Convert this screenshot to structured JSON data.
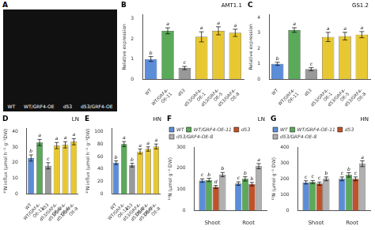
{
  "chart_data": [
    {
      "type": "image",
      "subtitle": "A",
      "color": "#111111",
      "annotations": [
        "WT",
        "WT/GRF4-OE",
        "d53",
        "d53/GRF4-OE"
      ]
    },
    {
      "type": "bar",
      "subtitle": "B",
      "title": "AMT1.1",
      "categories": [
        "WT",
        "WT/GRF4-\nOE-11",
        "d53",
        "d53/GRF4-\nOE-1",
        "d53/GRF4-\nOE-5",
        "d53/GRF4-\nOE-8"
      ],
      "values": [
        1.0,
        2.4,
        0.55,
        2.1,
        2.4,
        2.3
      ],
      "errors": [
        0.12,
        0.15,
        0.08,
        0.25,
        0.2,
        0.18
      ],
      "annotations": [
        "b",
        "a",
        "c",
        "a",
        "a",
        "a"
      ],
      "colors": [
        "#5b8dd9",
        "#5aaa5a",
        "#999999",
        "#e8c832",
        "#e8c832",
        "#e8c832"
      ],
      "ylabel": "Relative expression",
      "ylim": [
        0,
        3.2
      ],
      "yticks": [
        0,
        1,
        2,
        3
      ],
      "grid": false
    },
    {
      "type": "bar",
      "subtitle": "C",
      "title": "GS1.2",
      "categories": [
        "WT",
        "WT/GRF4-\nOE-11",
        "d53",
        "d53/GRF4-\nOE-1",
        "d53/GRF4-\nOE-5",
        "d53/GRF4-\nOE-8"
      ],
      "values": [
        1.0,
        3.2,
        0.65,
        2.75,
        2.8,
        2.9
      ],
      "errors": [
        0.1,
        0.15,
        0.1,
        0.3,
        0.25,
        0.2
      ],
      "annotations": [
        "b",
        "a",
        "c",
        "a",
        "a",
        "a"
      ],
      "colors": [
        "#5b8dd9",
        "#5aaa5a",
        "#999999",
        "#e8c832",
        "#e8c832",
        "#e8c832"
      ],
      "ylabel": "Relative expression",
      "ylim": [
        0,
        4.2
      ],
      "yticks": [
        0,
        1,
        2,
        3,
        4
      ],
      "grid": false
    },
    {
      "type": "bar",
      "subtitle": "D",
      "title": "LN",
      "categories": [
        "WT",
        "WT/GRF4-\nOE-11",
        "d53",
        "d53/GRF4-\nOE-1",
        "d53/GRF4-\nOE-5",
        "d53/GRF4-\nOE-8"
      ],
      "values": [
        23.0,
        33.0,
        18.0,
        31.0,
        31.5,
        33.5
      ],
      "errors": [
        2.0,
        2.0,
        2.0,
        2.0,
        2.0,
        2.0
      ],
      "annotations": [
        "b",
        "a",
        "c",
        "a",
        "a",
        "a"
      ],
      "colors": [
        "#5b8dd9",
        "#5aaa5a",
        "#999999",
        "#e8c832",
        "#e8c832",
        "#e8c832"
      ],
      "ylabel": "¹⁵N influx (μmol h⁻¹ g⁻¹DW)",
      "ylim": [
        0,
        42
      ],
      "yticks": [
        0,
        10,
        20,
        30,
        40
      ],
      "grid": false
    },
    {
      "type": "bar",
      "subtitle": "E",
      "title": "HN",
      "categories": [
        "WT",
        "WT/GRF4-\nOE-11",
        "d53",
        "d53/GRF4-\nOE-1",
        "d53/GRF4-\nOE-5",
        "d53/GRF4-\nOE-8"
      ],
      "values": [
        50.0,
        80.0,
        46.0,
        68.0,
        72.0,
        76.0
      ],
      "errors": [
        3.0,
        4.0,
        3.0,
        4.0,
        3.5,
        4.0
      ],
      "annotations": [
        "b",
        "a",
        "b",
        "a",
        "a",
        "a"
      ],
      "colors": [
        "#5b8dd9",
        "#5aaa5a",
        "#999999",
        "#e8c832",
        "#e8c832",
        "#e8c832"
      ],
      "ylabel": "¹⁵N influx (μmol h⁻¹ g⁻¹DW)",
      "ylim": [
        0,
        105
      ],
      "yticks": [
        0,
        20,
        40,
        60,
        80,
        100
      ],
      "grid": false
    },
    {
      "type": "bar",
      "subtitle": "F",
      "title": "LN",
      "categories": [
        "Shoot",
        "Root"
      ],
      "series": [
        {
          "name": "WT",
          "color": "#5b8dd9",
          "values": [
            142,
            128
          ],
          "errors": [
            8,
            8
          ],
          "annotations": [
            "c",
            "c"
          ]
        },
        {
          "name": "WT/GRF4-OE-11",
          "color": "#5aaa5a",
          "values": [
            145,
            150
          ],
          "errors": [
            8,
            10
          ],
          "annotations": [
            "b",
            "b"
          ]
        },
        {
          "name": "d53",
          "color": "#c0522a",
          "values": [
            112,
            125
          ],
          "errors": [
            7,
            8
          ],
          "annotations": [
            "d",
            "b"
          ]
        },
        {
          "name": "d53/GRF4-OE-8",
          "color": "#b0b0b0",
          "values": [
            170,
            210
          ],
          "errors": [
            10,
            12
          ],
          "annotations": [
            "b",
            "a"
          ]
        }
      ],
      "ylabel": "¹⁵N (μmol g⁻¹ DW)",
      "ylim": [
        0,
        300
      ],
      "yticks": [
        0,
        100,
        200,
        300
      ],
      "grid": false,
      "legend": "upper left"
    },
    {
      "type": "bar",
      "subtitle": "G",
      "title": "HN",
      "categories": [
        "Shoot",
        "Root"
      ],
      "series": [
        {
          "name": "WT",
          "color": "#5b8dd9",
          "values": [
            178,
            200
          ],
          "errors": [
            10,
            12
          ],
          "annotations": [
            "c",
            "c"
          ]
        },
        {
          "name": "WT/GRF4-OE-11",
          "color": "#5aaa5a",
          "values": [
            180,
            225
          ],
          "errors": [
            10,
            14
          ],
          "annotations": [
            "c",
            "b"
          ]
        },
        {
          "name": "d53",
          "color": "#c0522a",
          "values": [
            170,
            200
          ],
          "errors": [
            10,
            12
          ],
          "annotations": [
            "c",
            "c"
          ]
        },
        {
          "name": "d53/GRF4-OE-8",
          "color": "#b0b0b0",
          "values": [
            200,
            295
          ],
          "errors": [
            12,
            18
          ],
          "annotations": [
            "b",
            "a"
          ]
        }
      ],
      "ylabel": "¹⁵N (μmol g⁻¹ DW)",
      "ylim": [
        0,
        400
      ],
      "yticks": [
        0,
        100,
        200,
        300,
        400
      ],
      "grid": false,
      "legend": "upper left"
    }
  ]
}
